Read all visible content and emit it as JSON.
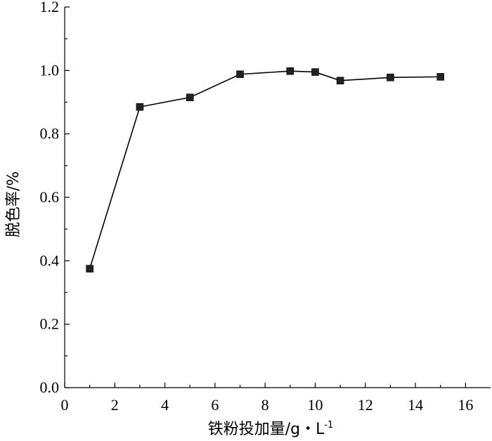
{
  "chart_data": {
    "type": "line",
    "xlabel": "铁粉投加量/g・L",
    "xlabel_sup": "-1",
    "ylabel": "脱色率/%",
    "xlim": [
      0,
      17
    ],
    "ylim": [
      0.0,
      1.2
    ],
    "xticks": [
      0,
      2,
      4,
      6,
      8,
      10,
      12,
      14,
      16
    ],
    "yticks": [
      0.0,
      0.2,
      0.4,
      0.6,
      0.8,
      1.0,
      1.2
    ],
    "xtick_labels": [
      "0",
      "2",
      "4",
      "6",
      "8",
      "10",
      "12",
      "14",
      "16"
    ],
    "ytick_labels": [
      "0.0",
      "0.2",
      "0.4",
      "0.6",
      "0.8",
      "1.0",
      "1.2"
    ],
    "grid": false,
    "series": [
      {
        "marker": "square",
        "color": "#222222",
        "x": [
          1,
          3,
          5,
          7,
          9,
          10,
          11,
          13,
          15
        ],
        "y": [
          0.375,
          0.885,
          0.915,
          0.988,
          0.998,
          0.995,
          0.968,
          0.978,
          0.98
        ]
      }
    ]
  }
}
